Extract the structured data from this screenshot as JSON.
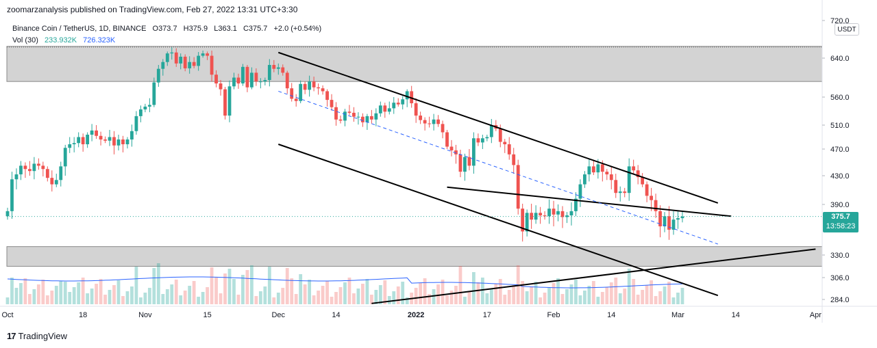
{
  "header": {
    "text": "zoomarzanalysis published on TradingView.com, Feb 27, 2022 13:31 UTC+3:30"
  },
  "symbol": {
    "name": "Binance Coin / TetherUS, 1D, BINANCE",
    "open": "O373.7",
    "high": "H375.9",
    "low": "L363.1",
    "close": "C375.7",
    "change": "+2.0 (+0.54%)"
  },
  "volume": {
    "label": "Vol (30)",
    "value1": "233.932K",
    "value2": "726.323K"
  },
  "currency": "USDT",
  "last_price": {
    "price": "375.7",
    "countdown": "13:58:23"
  },
  "footer": {
    "brand": "TradingView",
    "logo": "17"
  },
  "colors": {
    "up": "#26a69a",
    "down": "#ef5350",
    "zone": "#d3d3d3",
    "ma": "#2962ff"
  },
  "chart_data": {
    "type": "candlestick",
    "title": "Binance Coin / TetherUS, 1D, BINANCE",
    "ylim": [
      270,
      735
    ],
    "y_ticks": [
      {
        "label": "720.0",
        "value": 720
      },
      {
        "label": "640.0",
        "value": 640
      },
      {
        "label": "560.0",
        "value": 560
      },
      {
        "label": "510.0",
        "value": 510
      },
      {
        "label": "470.0",
        "value": 470
      },
      {
        "label": "430.0",
        "value": 430
      },
      {
        "label": "390.0",
        "value": 390
      },
      {
        "label": "330.0",
        "value": 330
      },
      {
        "label": "306.0",
        "value": 306
      },
      {
        "label": "284.0",
        "value": 284
      }
    ],
    "x_ticks": [
      {
        "label": "Oct",
        "day": 0
      },
      {
        "label": "18",
        "day": 17
      },
      {
        "label": "Nov",
        "day": 31
      },
      {
        "label": "15",
        "day": 45
      },
      {
        "label": "Dec",
        "day": 61
      },
      {
        "label": "14",
        "day": 74
      },
      {
        "label": "2022",
        "day": 92
      },
      {
        "label": "17",
        "day": 108
      },
      {
        "label": "Feb",
        "day": 123
      },
      {
        "label": "14",
        "day": 136
      },
      {
        "label": "Mar",
        "day": 151
      },
      {
        "label": "14",
        "day": 164
      },
      {
        "label": "Apr",
        "day": 182
      }
    ],
    "closes": [
      382,
      425,
      432,
      445,
      440,
      437,
      448,
      445,
      440,
      427,
      418,
      424,
      444,
      472,
      478,
      480,
      490,
      478,
      494,
      501,
      492,
      486,
      484,
      490,
      476,
      486,
      478,
      486,
      500,
      526,
      538,
      543,
      546,
      590,
      618,
      632,
      650,
      652,
      629,
      643,
      619,
      632,
      624,
      645,
      650,
      645,
      606,
      588,
      576,
      527,
      582,
      600,
      588,
      622,
      580,
      610,
      592,
      592,
      595,
      626,
      618,
      621,
      610,
      578,
      557,
      553,
      587,
      575,
      592,
      580,
      578,
      572,
      555,
      542,
      520,
      518,
      534,
      532,
      525,
      525,
      515,
      526,
      520,
      531,
      545,
      534,
      540,
      550,
      547,
      556,
      572,
      549,
      527,
      519,
      513,
      512,
      520,
      512,
      498,
      474,
      468,
      462,
      436,
      458,
      445,
      488,
      481,
      488,
      490,
      510,
      504,
      482,
      478,
      462,
      446,
      385,
      358,
      380,
      372,
      380,
      377,
      376,
      385,
      378,
      382,
      375,
      377,
      382,
      398,
      418,
      432,
      444,
      435,
      447,
      436,
      432,
      424,
      406,
      408,
      406,
      444,
      438,
      428,
      418,
      402,
      396,
      382,
      364,
      376,
      360,
      372,
      373.7,
      375.7
    ],
    "zones": [
      {
        "name": "resistance-zone",
        "from": 592,
        "to": 665
      },
      {
        "name": "support-zone",
        "from": 318,
        "to": 340
      }
    ],
    "trendlines": [
      {
        "name": "upper-channel",
        "points": [
          [
            61,
            652
          ],
          [
            160,
            392
          ]
        ]
      },
      {
        "name": "lower-channel",
        "points": [
          [
            61,
            478
          ],
          [
            160,
            288
          ]
        ]
      },
      {
        "name": "neckline",
        "points": [
          [
            99,
            414
          ],
          [
            163,
            376
          ]
        ]
      },
      {
        "name": "rising-support",
        "points": [
          [
            82,
            280
          ],
          [
            182,
            337
          ]
        ]
      },
      {
        "name": "mid-dashed",
        "points": [
          [
            61,
            572
          ],
          [
            160,
            343
          ]
        ]
      }
    ],
    "last_price_line": 375.7
  }
}
